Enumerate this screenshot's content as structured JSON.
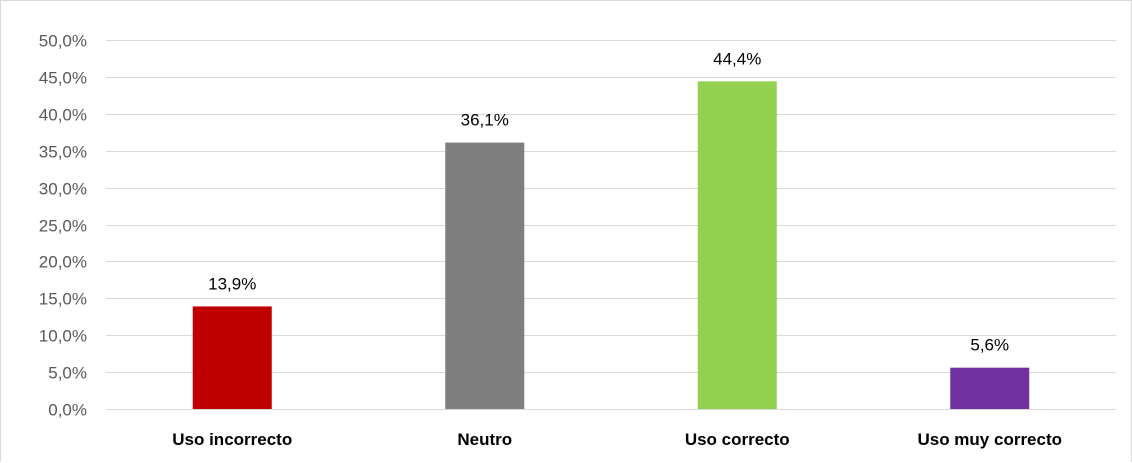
{
  "chart_data": {
    "type": "bar",
    "title": "",
    "xlabel": "",
    "ylabel": "",
    "categories": [
      "Uso incorrecto",
      "Neutro",
      "Uso correcto",
      "Uso muy correcto"
    ],
    "values": [
      13.9,
      36.1,
      44.4,
      5.6
    ],
    "data_labels": [
      "13,9%",
      "36,1%",
      "44,4%",
      "5,6%"
    ],
    "colors": [
      "#c00000",
      "#7f7f7f",
      "#92d050",
      "#7030a0"
    ],
    "ylim": [
      0,
      50
    ],
    "yticks": [
      0,
      5,
      10,
      15,
      20,
      25,
      30,
      35,
      40,
      45,
      50
    ],
    "ytick_labels": [
      "0,0%",
      "5,0%",
      "10,0%",
      "15,0%",
      "20,0%",
      "25,0%",
      "30,0%",
      "35,0%",
      "40,0%",
      "45,0%",
      "50,0%"
    ],
    "grid": true,
    "legend": "none",
    "gridline_color": "#d9d9d9"
  }
}
